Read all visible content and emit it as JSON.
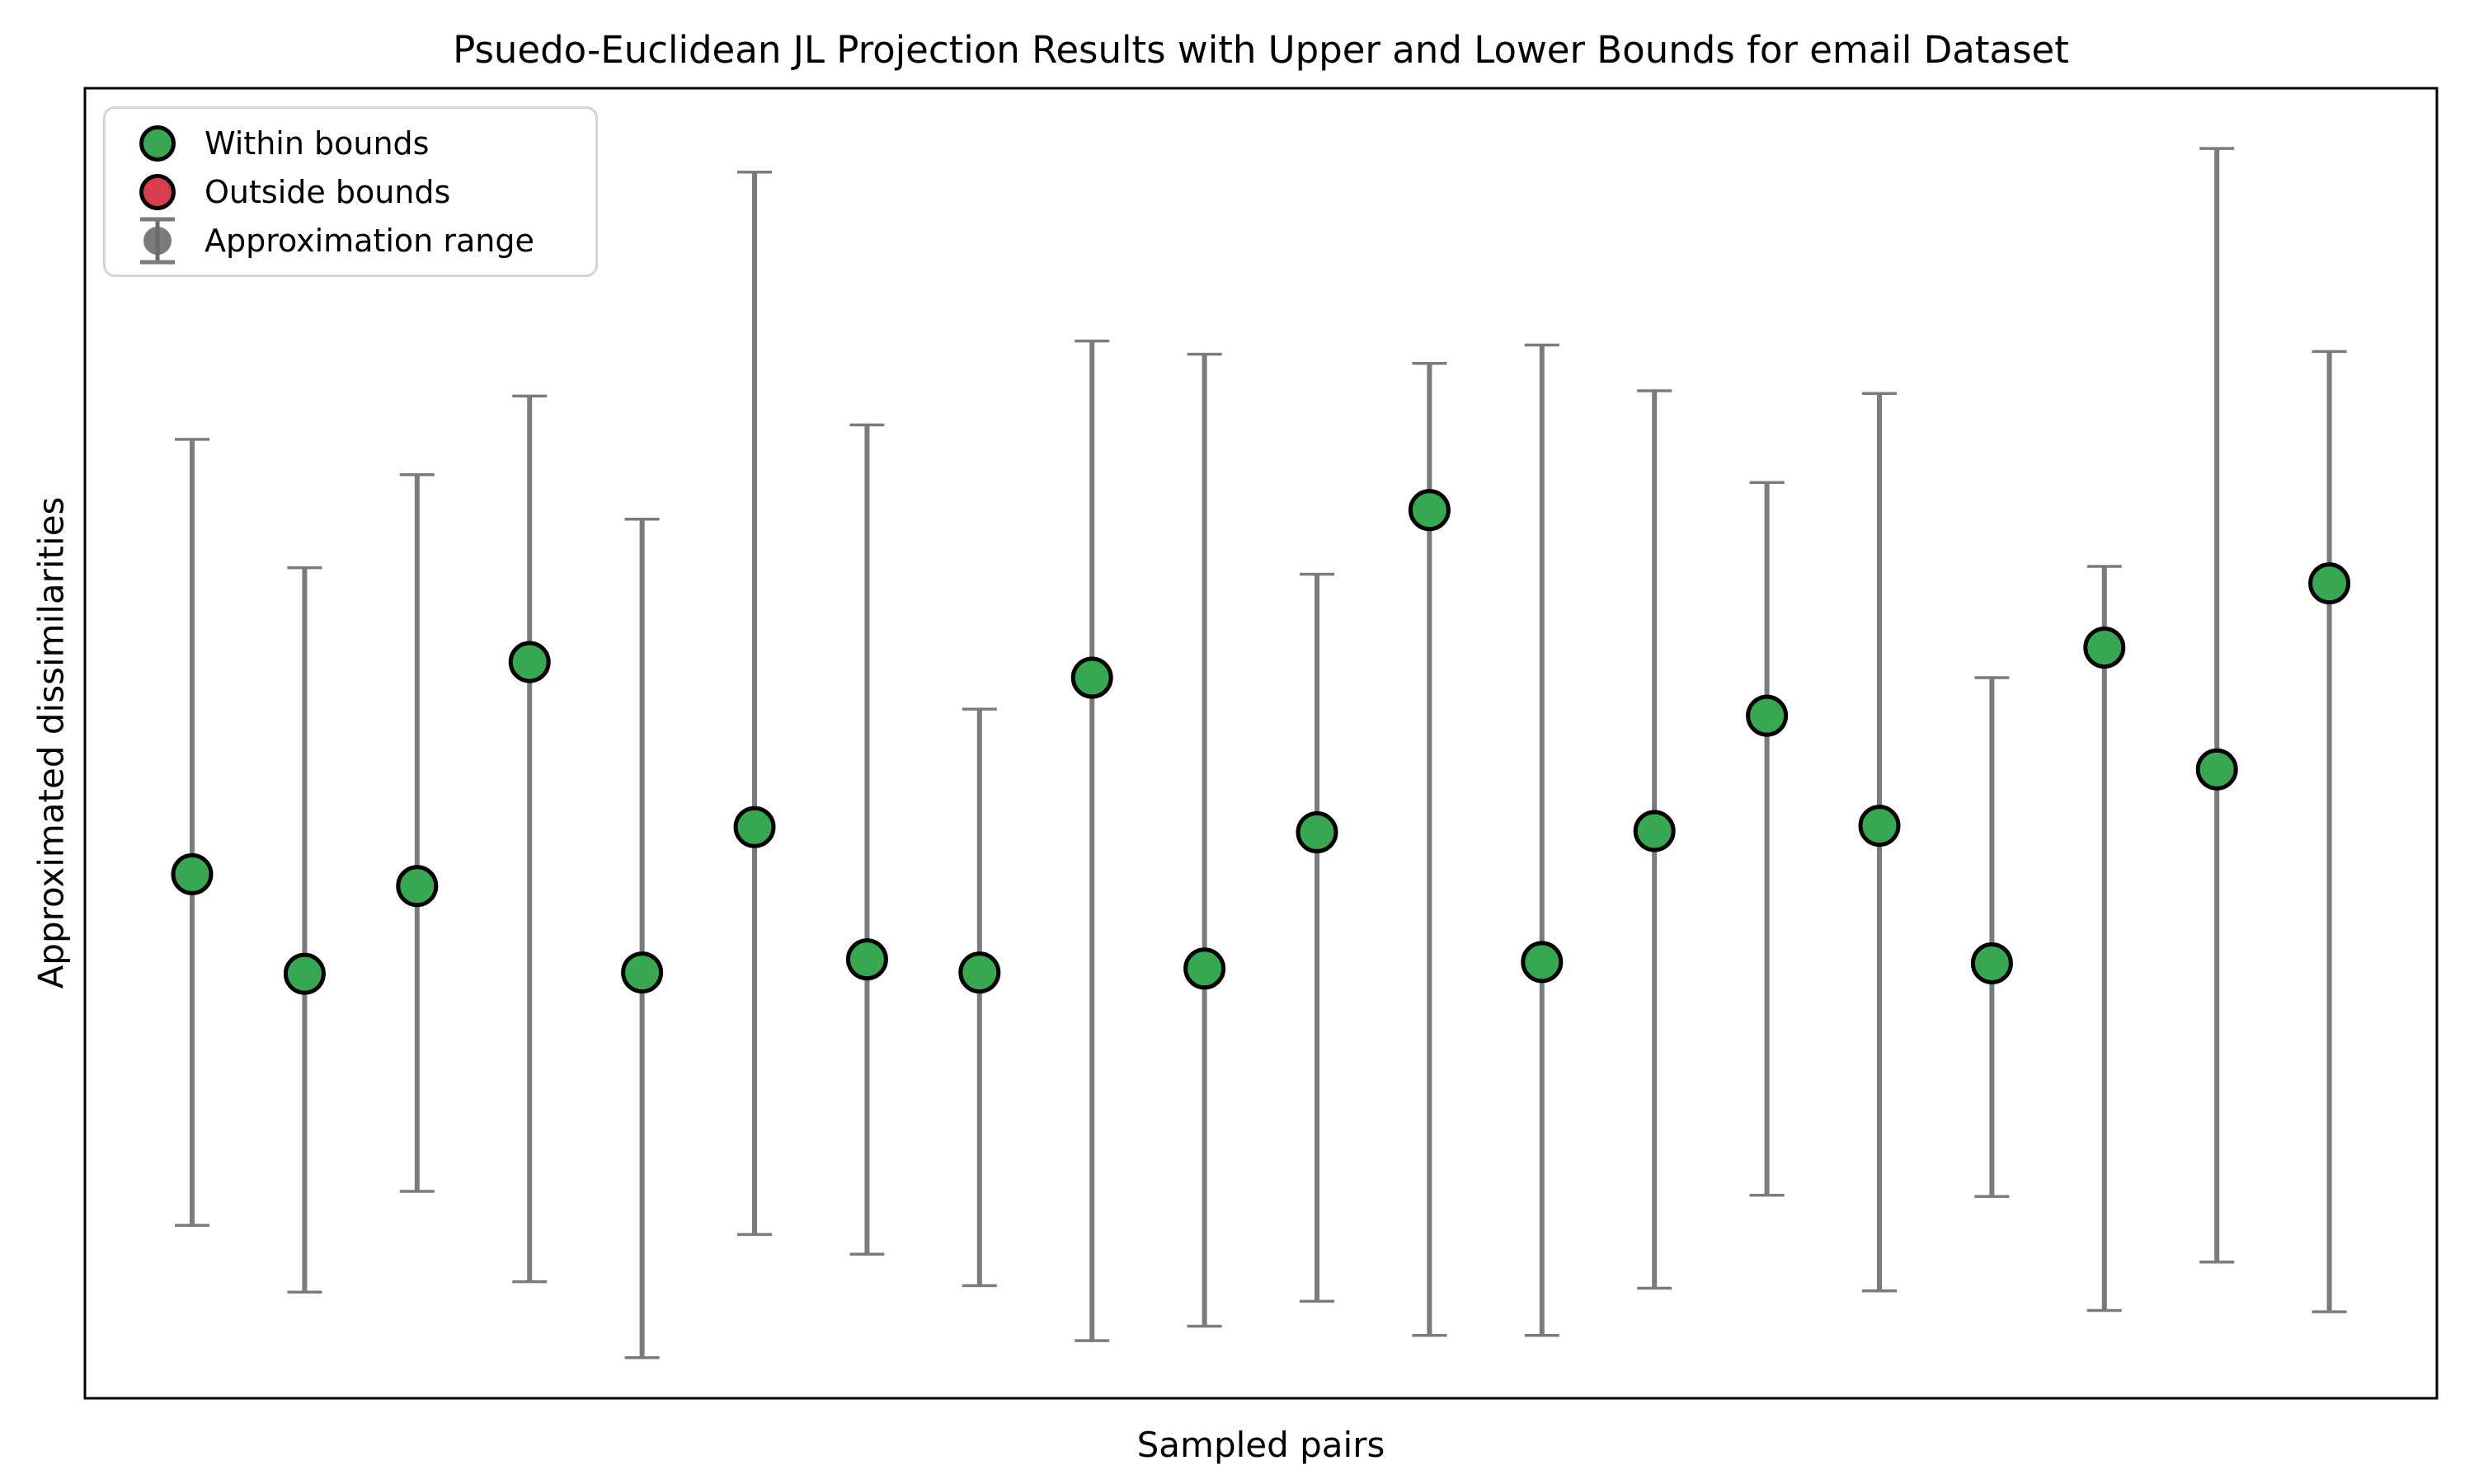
{
  "figure": {
    "title": "Psuedo-Euclidean JL Projection Results with Upper and Lower Bounds for email Dataset",
    "xlabel": "Sampled pairs",
    "ylabel": "Approximated dissimilarities"
  },
  "legend": {
    "items": [
      {
        "label": "Within bounds",
        "marker": "circle",
        "color": "#38a752"
      },
      {
        "label": "Outside bounds",
        "marker": "circle",
        "color": "#d83e4e"
      },
      {
        "label": "Approximation range",
        "marker": "errorbar",
        "color": "#7b7b7b"
      }
    ]
  },
  "colors": {
    "within": "#38a752",
    "outside": "#d83e4e",
    "errorbar": "#7b7b7b",
    "marker_edge": "#000000",
    "spine": "#000000",
    "background": "#ffffff",
    "legend_border": "#d5d5d5"
  },
  "chart_data": {
    "type": "scatter",
    "title": "Psuedo-Euclidean JL Projection Results with Upper and Lower Bounds for email Dataset",
    "xlabel": "Sampled pairs",
    "ylabel": "Approximated dissimilarities",
    "n_points": 20,
    "x": [
      1,
      2,
      3,
      4,
      5,
      6,
      7,
      8,
      9,
      10,
      11,
      12,
      13,
      14,
      15,
      16,
      17,
      18,
      19,
      20
    ],
    "series": [
      {
        "name": "Approximated dissimilarity",
        "values": [
          0.4,
          0.324,
          0.391,
          0.562,
          0.325,
          0.436,
          0.335,
          0.325,
          0.55,
          0.328,
          0.432,
          0.678,
          0.333,
          0.433,
          0.521,
          0.437,
          0.332,
          0.573,
          0.48,
          0.622
        ]
      },
      {
        "name": "Upper bound",
        "values": [
          0.732,
          0.634,
          0.705,
          0.765,
          0.671,
          0.936,
          0.743,
          0.526,
          0.807,
          0.797,
          0.629,
          0.79,
          0.804,
          0.769,
          0.699,
          0.767,
          0.55,
          0.635,
          0.954,
          0.799
        ]
      },
      {
        "name": "Lower bound",
        "values": [
          0.132,
          0.081,
          0.158,
          0.089,
          0.031,
          0.125,
          0.11,
          0.086,
          0.044,
          0.055,
          0.074,
          0.048,
          0.048,
          0.084,
          0.155,
          0.082,
          0.154,
          0.067,
          0.104,
          0.066
        ]
      }
    ],
    "point_status": [
      "within",
      "within",
      "within",
      "within",
      "within",
      "within",
      "within",
      "within",
      "within",
      "within",
      "within",
      "within",
      "within",
      "within",
      "within",
      "within",
      "within",
      "within",
      "within",
      "within"
    ],
    "ylim": [
      0,
      1
    ],
    "grid": false,
    "axis_tick_labels": "none",
    "legend_position": "upper-left"
  }
}
